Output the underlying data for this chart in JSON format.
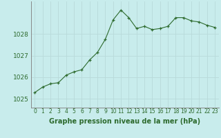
{
  "x": [
    0,
    1,
    2,
    3,
    4,
    5,
    6,
    7,
    8,
    9,
    10,
    11,
    12,
    13,
    14,
    15,
    16,
    17,
    18,
    19,
    20,
    21,
    22,
    23
  ],
  "y": [
    1025.3,
    1025.55,
    1025.7,
    1025.75,
    1026.1,
    1026.25,
    1026.35,
    1026.8,
    1027.15,
    1027.75,
    1028.65,
    1029.1,
    1028.75,
    1028.25,
    1028.35,
    1028.2,
    1028.25,
    1028.35,
    1028.75,
    1028.75,
    1028.6,
    1028.55,
    1028.4,
    1028.3
  ],
  "line_color": "#2d6a2d",
  "marker_color": "#2d6a2d",
  "bg_color": "#c8ecec",
  "grid_color": "#b8dada",
  "xlabel": "Graphe pression niveau de la mer (hPa)",
  "ylabel_ticks": [
    1025,
    1026,
    1027,
    1028
  ],
  "ylim": [
    1024.6,
    1029.5
  ],
  "xlim": [
    -0.5,
    23.5
  ],
  "xtick_labels": [
    "0",
    "1",
    "2",
    "3",
    "4",
    "5",
    "6",
    "7",
    "8",
    "9",
    "10",
    "11",
    "12",
    "13",
    "14",
    "15",
    "16",
    "17",
    "18",
    "19",
    "20",
    "21",
    "22",
    "23"
  ],
  "xlabel_fontsize": 7,
  "ytick_fontsize": 6.5,
  "xtick_fontsize": 5.5
}
